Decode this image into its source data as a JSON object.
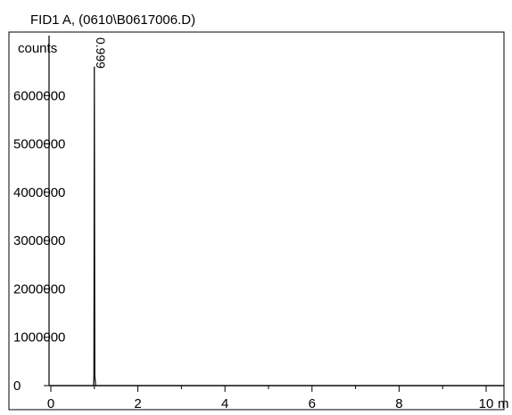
{
  "chart_data": {
    "type": "line",
    "title": "FID1 A,  (0610\\B0617006.D)",
    "ylabel": "counts",
    "xlabel": "m",
    "xlim": [
      0,
      10.4
    ],
    "ylim": [
      0,
      7000000
    ],
    "x_ticks": [
      0,
      2,
      4,
      6,
      8,
      10
    ],
    "y_ticks": [
      0,
      1000000,
      2000000,
      3000000,
      4000000,
      5000000,
      6000000
    ],
    "x_tick_labels": [
      "0",
      "2",
      "4",
      "6",
      "8",
      "10"
    ],
    "y_tick_labels": [
      "0",
      "1000000",
      "2000000",
      "3000000",
      "4000000",
      "5000000",
      "6000000"
    ],
    "series": [
      {
        "x": [
          0,
          0.98,
          0.99,
          0.999,
          1.01,
          1.03,
          10.4
        ],
        "y": [
          0,
          0,
          200000,
          6600000,
          200000,
          0,
          0
        ]
      }
    ],
    "annotations": [
      {
        "text": "0.999",
        "x": 0.999
      }
    ],
    "grid": false,
    "colors": {
      "line": "#000000",
      "axes": "#000000",
      "background": "#ffffff"
    }
  }
}
